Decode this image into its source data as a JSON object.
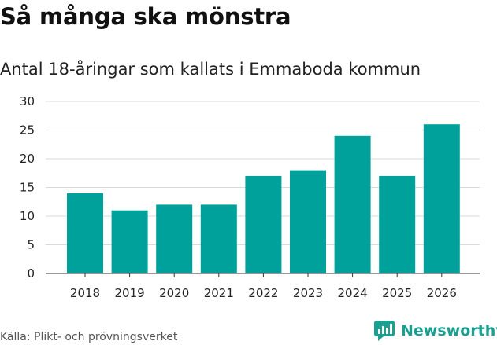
{
  "header": {
    "title": "Så många ska mönstra",
    "subtitle": "Antal 18-åringar som kallats i Emmaboda kommun"
  },
  "footer": {
    "source": "Källa: Plikt- och prövningsverket",
    "brand": "Newsworthy"
  },
  "colors": {
    "bar": "#00A19A",
    "grid": "#d9d9d9",
    "brand": "#1a9f90"
  },
  "chart_data": {
    "type": "bar",
    "title": "Så många ska mönstra",
    "subtitle": "Antal 18-åringar som kallats i Emmaboda kommun",
    "xlabel": "",
    "ylabel": "",
    "categories": [
      "2018",
      "2019",
      "2020",
      "2021",
      "2022",
      "2023",
      "2024",
      "2025",
      "2026"
    ],
    "values": [
      14,
      11,
      12,
      12,
      17,
      18,
      24,
      17,
      26
    ],
    "ylim": [
      0,
      30
    ],
    "yticks": [
      0,
      5,
      10,
      15,
      20,
      25,
      30
    ],
    "grid": true,
    "legend": "none"
  }
}
